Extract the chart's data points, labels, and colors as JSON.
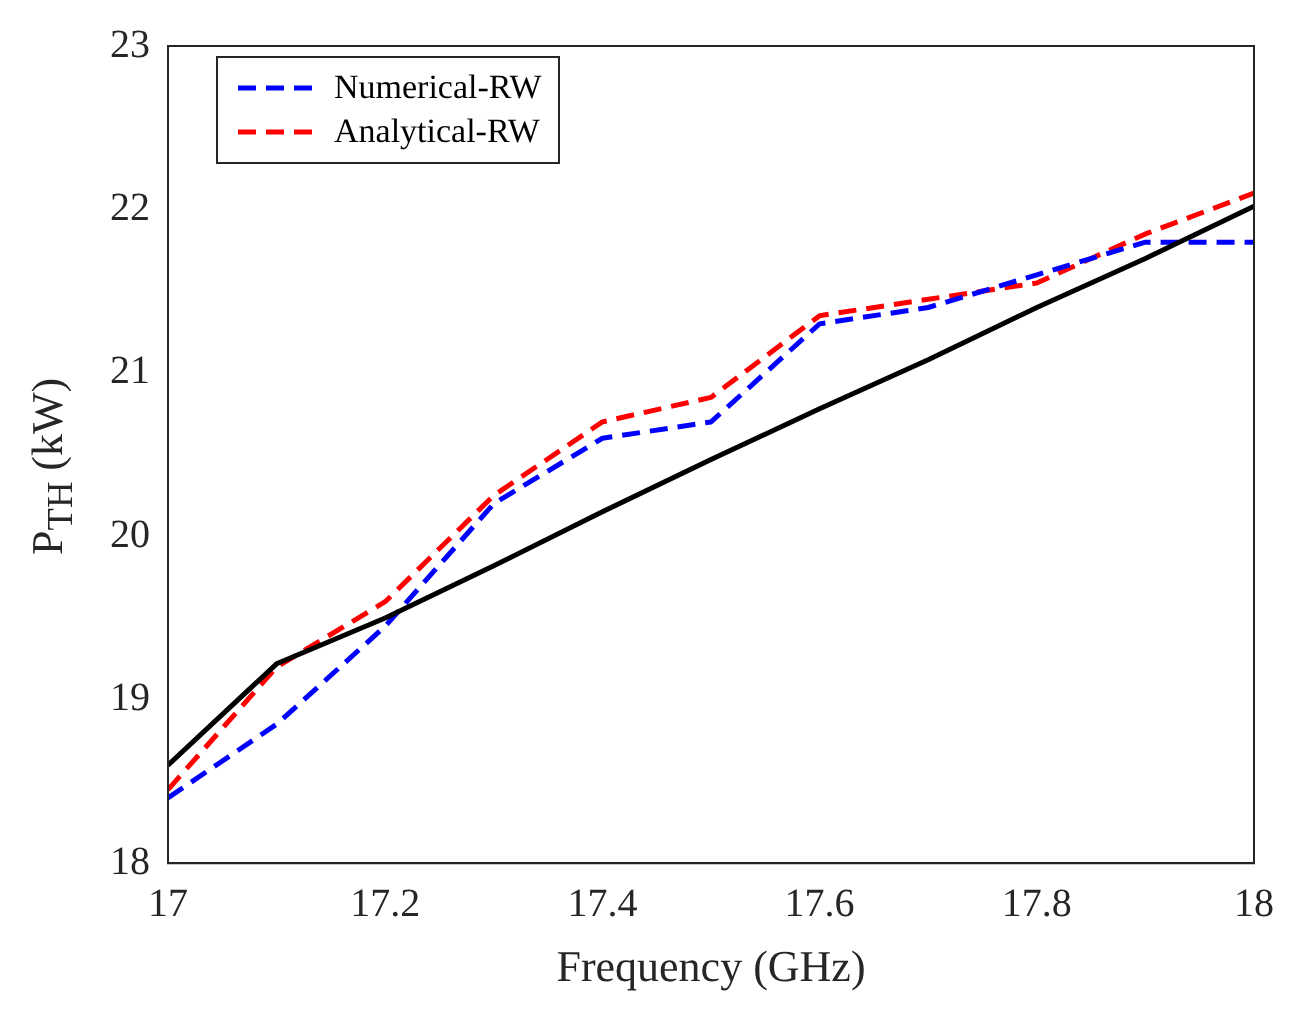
{
  "chart_data": {
    "type": "line",
    "xlabel": "Frequency (GHz)",
    "ylabel": "P$_{TH}$ (kW)",
    "x": [
      17,
      17.1,
      17.2,
      17.3,
      17.4,
      17.5,
      17.6,
      17.7,
      17.8,
      17.9,
      18
    ],
    "series": [
      {
        "color": "#000000",
        "line_style": "solid",
        "values": [
          18.6,
          19.22,
          19.5,
          19.82,
          20.15,
          20.47,
          20.78,
          21.08,
          21.4,
          21.7,
          22.02
        ]
      },
      {
        "name": "Numerical-RW",
        "color": "#0000ff",
        "line_style": "dashed",
        "values": [
          18.4,
          18.85,
          19.45,
          20.2,
          20.6,
          20.7,
          21.3,
          21.4,
          21.6,
          21.8,
          21.8
        ]
      },
      {
        "name": "Analytical-RW",
        "color": "#ff0000",
        "line_style": "dashed",
        "values": [
          18.45,
          19.2,
          19.6,
          20.25,
          20.7,
          20.85,
          21.35,
          21.45,
          21.55,
          21.85,
          22.1
        ]
      }
    ],
    "xlim": [
      17,
      18
    ],
    "xticks": [
      17,
      17.2,
      17.4,
      17.6,
      17.8,
      18
    ],
    "ylim": [
      18,
      23
    ],
    "yticks": [
      18,
      19,
      20,
      21,
      22,
      23
    ],
    "grid": false,
    "legend": "top left",
    "marker": "none"
  }
}
